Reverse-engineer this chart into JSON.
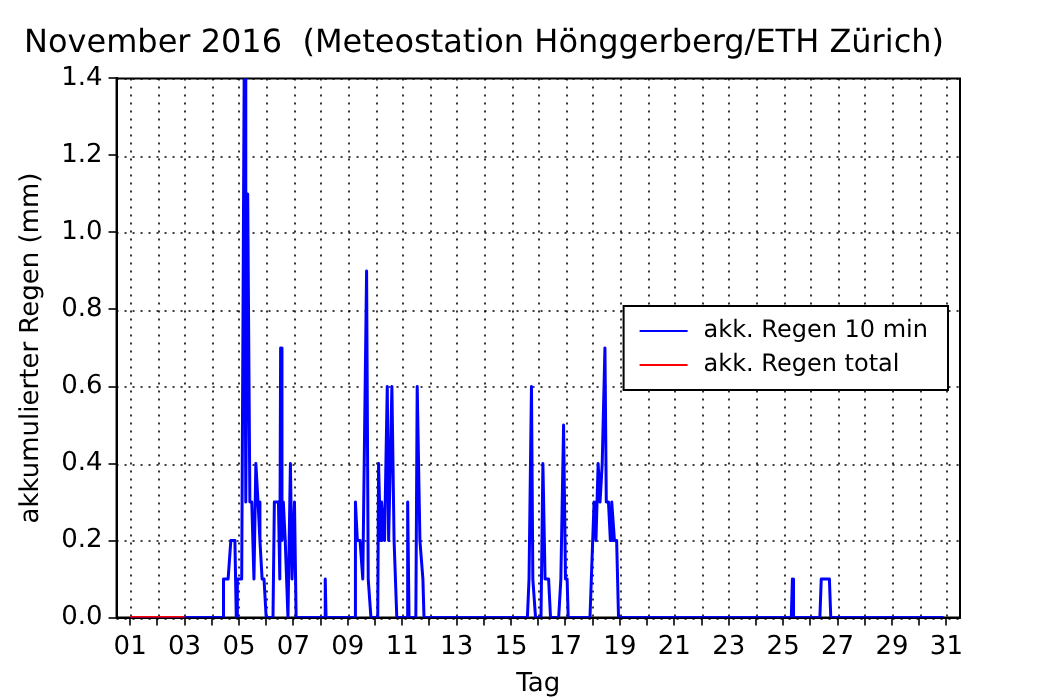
{
  "chart_data": {
    "type": "line",
    "title": "November 2016  (Meteostation Hönggerberg/ETH Zürich)",
    "xlabel": "Tag",
    "ylabel": "akkumulierter Regen (mm)",
    "xlim": [
      0.5,
      31.5
    ],
    "xticks": [
      {
        "value": 1,
        "label": "01"
      },
      {
        "value": 2,
        "label": null
      },
      {
        "value": 3,
        "label": "03"
      },
      {
        "value": 4,
        "label": null
      },
      {
        "value": 5,
        "label": "05"
      },
      {
        "value": 6,
        "label": null
      },
      {
        "value": 7,
        "label": "07"
      },
      {
        "value": 8,
        "label": null
      },
      {
        "value": 9,
        "label": "09"
      },
      {
        "value": 10,
        "label": null
      },
      {
        "value": 11,
        "label": "11"
      },
      {
        "value": 12,
        "label": null
      },
      {
        "value": 13,
        "label": "13"
      },
      {
        "value": 14,
        "label": null
      },
      {
        "value": 15,
        "label": "15"
      },
      {
        "value": 16,
        "label": null
      },
      {
        "value": 17,
        "label": "17"
      },
      {
        "value": 18,
        "label": null
      },
      {
        "value": 19,
        "label": "19"
      },
      {
        "value": 20,
        "label": null
      },
      {
        "value": 21,
        "label": "21"
      },
      {
        "value": 22,
        "label": null
      },
      {
        "value": 23,
        "label": "23"
      },
      {
        "value": 24,
        "label": null
      },
      {
        "value": 25,
        "label": "25"
      },
      {
        "value": 26,
        "label": null
      },
      {
        "value": 27,
        "label": "27"
      },
      {
        "value": 28,
        "label": null
      },
      {
        "value": 29,
        "label": "29"
      },
      {
        "value": 30,
        "label": null
      },
      {
        "value": 31,
        "label": "31"
      }
    ],
    "ylim": [
      0,
      1.4
    ],
    "yticks": [
      {
        "value": 0,
        "label": "0.0"
      },
      {
        "value": 0.2,
        "label": "0.2"
      },
      {
        "value": 0.4,
        "label": "0.4"
      },
      {
        "value": 0.6,
        "label": "0.6"
      },
      {
        "value": 0.8,
        "label": "0.8"
      },
      {
        "value": 1,
        "label": "1.0"
      },
      {
        "value": 1.2,
        "label": "1.2"
      },
      {
        "value": 1.4,
        "label": "1.4"
      }
    ],
    "grid": true,
    "legend": "right",
    "marker": "none",
    "line_style": "solid",
    "series": [
      {
        "name": "akk. Regen 10 min",
        "color": "#0000ff",
        "x": [
          1.0,
          4.4,
          4.43,
          4.6,
          4.7,
          4.85,
          4.9,
          4.94,
          5.1,
          5.19,
          5.25,
          5.32,
          5.4,
          5.47,
          5.55,
          5.62,
          5.7,
          5.77,
          5.85,
          5.92,
          6.0,
          6.25,
          6.3,
          6.45,
          6.5,
          6.53,
          6.58,
          6.63,
          6.7,
          6.8,
          6.89,
          6.95,
          7.04,
          7.1,
          8.15,
          8.17,
          8.2,
          9.25,
          9.28,
          9.35,
          9.45,
          9.55,
          9.69,
          9.75,
          9.79,
          9.85,
          10.1,
          10.13,
          10.2,
          10.24,
          10.35,
          10.45,
          10.5,
          10.62,
          10.7,
          10.75,
          10.8,
          11.15,
          11.2,
          11.25,
          11.5,
          11.55,
          11.65,
          11.76,
          11.8,
          15.6,
          15.66,
          15.75,
          15.8,
          15.9,
          16.1,
          16.17,
          16.25,
          16.38,
          16.45,
          16.75,
          16.83,
          16.93,
          17.0,
          17.06,
          17.1,
          17.9,
          17.95,
          18.05,
          18.12,
          18.2,
          18.27,
          18.35,
          18.45,
          18.5,
          18.58,
          18.65,
          18.7,
          18.8,
          18.88,
          18.95,
          25.3,
          25.34,
          25.38,
          26.35,
          26.4,
          26.7,
          26.75,
          30.9
        ],
        "values": [
          0,
          0,
          0.1,
          0.1,
          0.2,
          0.2,
          0,
          0.1,
          0.1,
          1.4,
          0.3,
          1.1,
          0.3,
          0.3,
          0.1,
          0.4,
          0.3,
          0.2,
          0.1,
          0.1,
          0,
          0,
          0.3,
          0.3,
          0.1,
          0.7,
          0.2,
          0.3,
          0.2,
          0,
          0.4,
          0.1,
          0.3,
          0,
          0,
          0.1,
          0,
          0,
          0.3,
          0.2,
          0.2,
          0.1,
          0.9,
          0.1,
          0.1,
          0,
          0,
          0.4,
          0.2,
          0.3,
          0.2,
          0.6,
          0.2,
          0.6,
          0.2,
          0.2,
          0,
          0,
          0.3,
          0,
          0,
          0.6,
          0.2,
          0.1,
          0,
          0,
          0.1,
          0.6,
          0.1,
          0,
          0,
          0.4,
          0.1,
          0.1,
          0,
          0,
          0.1,
          0.5,
          0.1,
          0.1,
          0,
          0,
          0.1,
          0.3,
          0.2,
          0.4,
          0.3,
          0.4,
          0.7,
          0.3,
          0.3,
          0.2,
          0.3,
          0.2,
          0.2,
          0,
          0,
          0.1,
          0,
          0,
          0.1,
          0.1,
          0,
          0
        ]
      },
      {
        "name": "akk. Regen total",
        "color": "#ff0000",
        "x": [
          1,
          3
        ],
        "values": [
          0,
          0
        ]
      }
    ]
  }
}
